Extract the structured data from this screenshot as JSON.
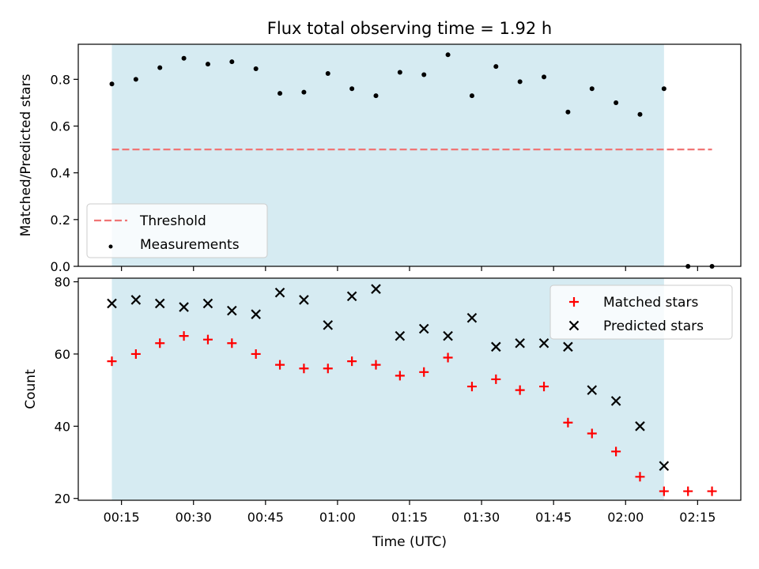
{
  "chart_data": {
    "title": "Flux total observing time = 1.92 h",
    "x_axis": {
      "label": "Time (UTC)",
      "ticks": [
        "00:15",
        "00:30",
        "00:45",
        "01:00",
        "01:15",
        "01:30",
        "01:45",
        "02:00",
        "02:15"
      ],
      "range": [
        "00:06",
        "02:24"
      ]
    },
    "shaded_region": {
      "start": "00:13",
      "end": "02:08",
      "color": "#add8e6"
    },
    "times": [
      "00:13",
      "00:18",
      "00:23",
      "00:28",
      "00:33",
      "00:38",
      "00:43",
      "00:48",
      "00:53",
      "00:58",
      "01:03",
      "01:08",
      "01:13",
      "01:18",
      "01:23",
      "01:28",
      "01:33",
      "01:38",
      "01:43",
      "01:48",
      "01:53",
      "01:58",
      "02:03",
      "02:08",
      "02:13",
      "02:18"
    ],
    "panels": [
      {
        "type": "scatter",
        "ylabel": "Matched/Predicted stars",
        "ylim": [
          0.0,
          0.95
        ],
        "yticks": [
          "0.0",
          "0.2",
          "0.4",
          "0.6",
          "0.8"
        ],
        "legend_position": "lower-left",
        "threshold": {
          "name": "Threshold",
          "value": 0.5,
          "x_start": "00:13",
          "x_end": "02:18",
          "color": "#f07575"
        },
        "series": [
          {
            "name": "Measurements",
            "marker": "dot",
            "color": "#000000",
            "values": [
              0.78,
              0.8,
              0.85,
              0.89,
              0.865,
              0.875,
              0.845,
              0.74,
              0.745,
              0.825,
              0.76,
              0.73,
              0.83,
              0.82,
              0.905,
              0.73,
              0.855,
              0.79,
              0.81,
              0.66,
              0.76,
              0.7,
              0.65,
              0.76,
              0.0,
              0.0
            ]
          }
        ]
      },
      {
        "type": "scatter",
        "ylabel": "Count",
        "ylim": [
          19.5,
          81
        ],
        "yticks": [
          "20",
          "40",
          "60",
          "80"
        ],
        "legend_position": "upper-right",
        "series": [
          {
            "name": "Matched stars",
            "marker": "plus",
            "color": "#ff0000",
            "values": [
              58,
              60,
              63,
              65,
              64,
              63,
              60,
              57,
              56,
              56,
              58,
              57,
              54,
              55,
              59,
              51,
              53,
              50,
              51,
              41,
              38,
              33,
              26,
              22,
              22,
              22
            ]
          },
          {
            "name": "Predicted stars",
            "marker": "x",
            "color": "#000000",
            "values": [
              74,
              75,
              74,
              73,
              74,
              72,
              71,
              77,
              75,
              68,
              76,
              78,
              65,
              67,
              65,
              70,
              62,
              63,
              63,
              62,
              50,
              47,
              40,
              29,
              null,
              null
            ]
          }
        ]
      }
    ]
  }
}
